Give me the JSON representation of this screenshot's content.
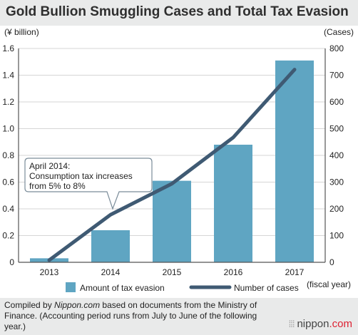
{
  "title": "Gold Bullion Smuggling Cases and Total Tax Evasion",
  "note": {
    "prefix": "Compiled by ",
    "source": "Nippon.com",
    "suffix": " based on documents from the Ministry of Finance. (Accounting period runs from July to June of the following year.)"
  },
  "logo": {
    "dots": "⁞⁞⁞",
    "brand": "nippon",
    "dotcom": ".com"
  },
  "callout": {
    "lines": [
      "April 2014:",
      "Consumption tax increases",
      "from 5% to 8%"
    ]
  },
  "colors": {
    "bar": "#5fa5c2",
    "line": "#3f5a73",
    "title_bg": "#e9eaea"
  },
  "chart_data": {
    "type": "bar",
    "categories": [
      "2013",
      "2014",
      "2015",
      "2016",
      "2017"
    ],
    "xlabel": "(fiscal year)",
    "ylabel_left": "(¥ billion)",
    "ylabel_right": "(Cases)",
    "ylim_left": [
      0,
      1.6
    ],
    "ylim_right": [
      0,
      800
    ],
    "yticks_left": [
      "0",
      "0.2",
      "0.4",
      "0.6",
      "0.8",
      "1.0",
      "1.2",
      "1.4",
      "1.6"
    ],
    "yticks_right": [
      "0",
      "100",
      "200",
      "300",
      "400",
      "500",
      "600",
      "700",
      "800"
    ],
    "series": [
      {
        "name": "Amount of tax evasion",
        "kind": "bar",
        "axis": "left",
        "values": [
          0.03,
          0.24,
          0.61,
          0.88,
          1.51
        ]
      },
      {
        "name": "Number of cases",
        "kind": "line",
        "axis": "right",
        "values": [
          8,
          178,
          294,
          467,
          721
        ]
      }
    ],
    "legend_position": "bottom"
  }
}
